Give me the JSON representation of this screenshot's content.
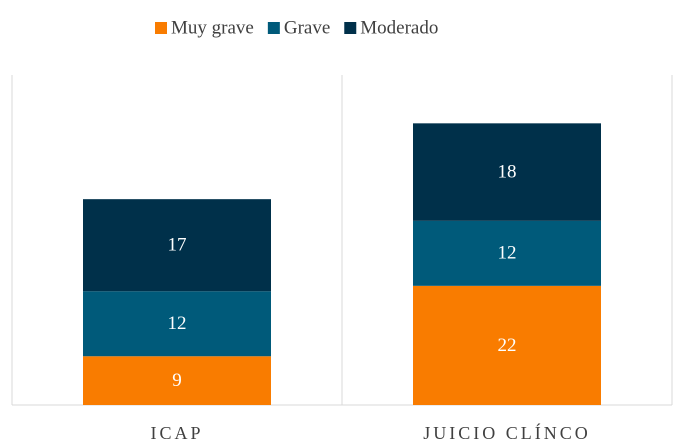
{
  "chart_data": {
    "type": "stacked_bar",
    "categories": [
      "ICAP",
      "JUICIO CLÍNCO"
    ],
    "series": [
      {
        "name": "Muy grave",
        "color": "#f97c00",
        "values": [
          9,
          22
        ]
      },
      {
        "name": "Grave",
        "color": "#005a7a",
        "values": [
          12,
          12
        ]
      },
      {
        "name": "Moderado",
        "color": "#00304a",
        "values": [
          17,
          18
        ]
      }
    ],
    "ylim": [
      0,
      60
    ],
    "legend": "top"
  }
}
